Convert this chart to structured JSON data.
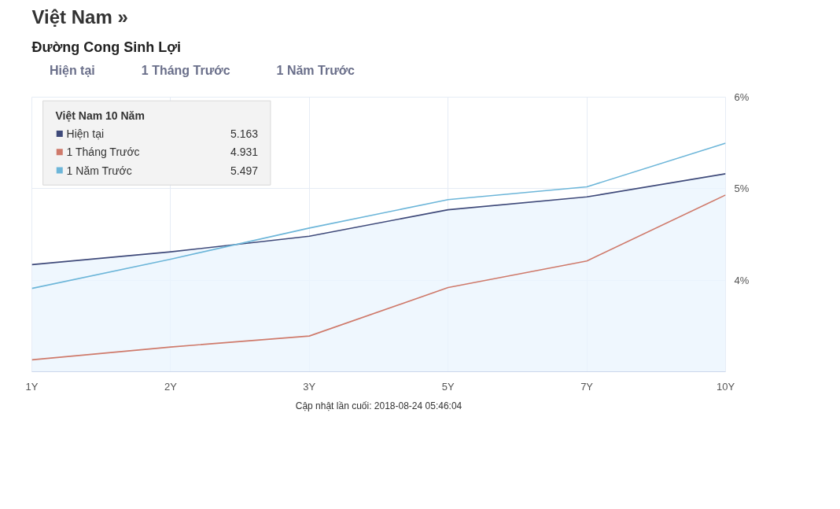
{
  "chart_data": {
    "type": "line",
    "title": "Việt Nam »",
    "subtitle": "Đường Cong Sinh Lợi",
    "categories": [
      "1Y",
      "2Y",
      "3Y",
      "5Y",
      "7Y",
      "10Y"
    ],
    "series": [
      {
        "name": "Hiện tại",
        "color": "#3f4a7a",
        "type": "area",
        "values": [
          4.17,
          4.31,
          4.48,
          4.77,
          4.91,
          5.163
        ]
      },
      {
        "name": "1 Tháng Trước",
        "color": "#cf7a6b",
        "values": [
          3.13,
          3.27,
          3.39,
          3.92,
          4.21,
          4.931
        ]
      },
      {
        "name": "1 Năm Trước",
        "color": "#6db6d9",
        "values": [
          3.91,
          4.23,
          4.57,
          4.88,
          5.02,
          5.497
        ]
      }
    ],
    "ylim": [
      3,
      6
    ],
    "yticks": [
      {
        "value": 4,
        "label": "4%"
      },
      {
        "value": 5,
        "label": "5%"
      },
      {
        "value": 6,
        "label": "6%"
      }
    ],
    "grid": true,
    "legend": "top left",
    "annotations": [
      "Việt Nam 10 Năm",
      "5.163",
      "4.931",
      "5.497",
      "Cập nhật lần cuối: 2018-08-24 05:46:04"
    ]
  }
}
